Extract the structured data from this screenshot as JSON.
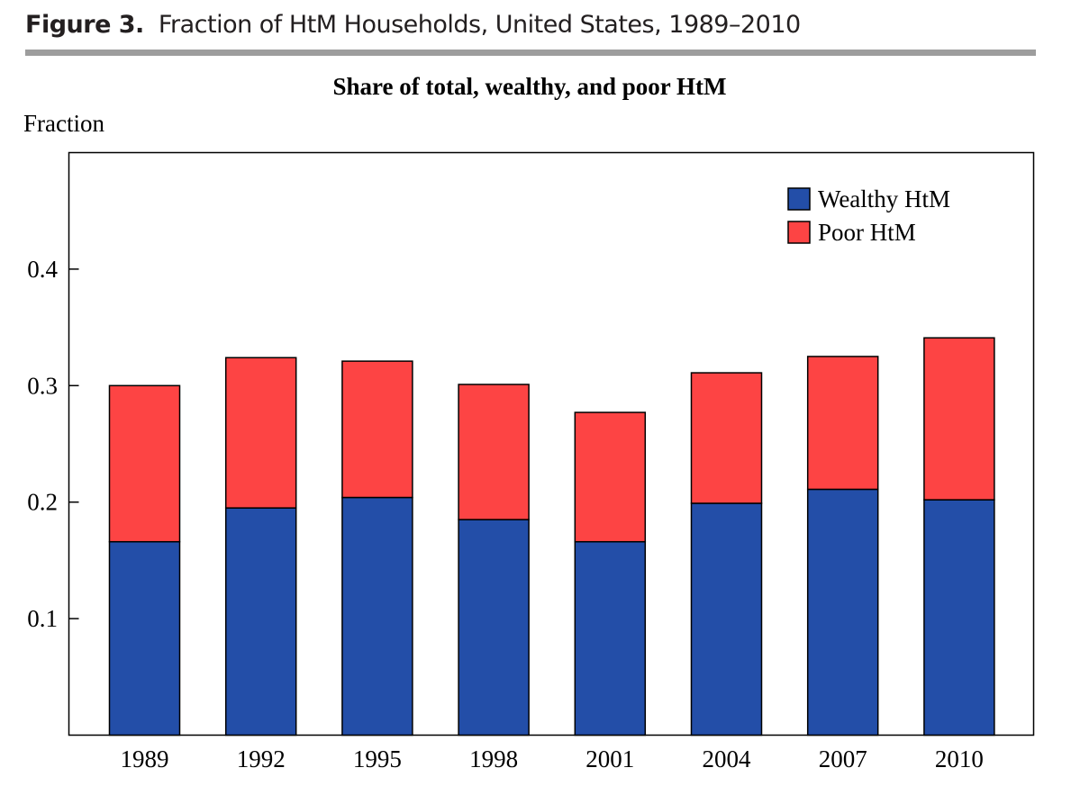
{
  "figure": {
    "number": "Figure 3.",
    "caption": "Fraction of HtM Households, United States, 1989–2010"
  },
  "colors": {
    "wealthy": "#234ea8",
    "poor": "#fd4444",
    "rule": "#9d9d9d"
  },
  "chart_data": {
    "type": "bar",
    "stacked": true,
    "title": "Share of total, wealthy, and poor HtM",
    "ylabel": "Fraction",
    "xlabel": "",
    "categories": [
      "1989",
      "1992",
      "1995",
      "1998",
      "2001",
      "2004",
      "2007",
      "2010"
    ],
    "series": [
      {
        "name": "Wealthy HtM",
        "values": [
          0.166,
          0.195,
          0.204,
          0.185,
          0.166,
          0.199,
          0.211,
          0.202
        ]
      },
      {
        "name": "Poor HtM",
        "values": [
          0.134,
          0.129,
          0.117,
          0.116,
          0.111,
          0.112,
          0.114,
          0.139
        ]
      }
    ],
    "ylim": [
      0,
      0.5
    ],
    "yticks": [
      0.1,
      0.2,
      0.3,
      0.4
    ],
    "ytick_labels": [
      "0.1",
      "0.2",
      "0.3",
      "0.4"
    ],
    "grid": false,
    "legend_position": "top-right"
  }
}
